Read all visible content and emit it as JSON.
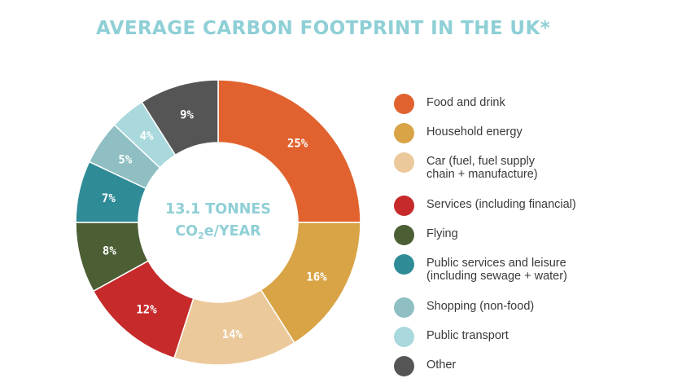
{
  "title": "AVERAGE CARBON FOOTPRINT IN THE UK*",
  "center": {
    "line1": "13.1 TONNES",
    "co2_main": "CO",
    "co2_sub": "2",
    "co2_rest": "e/YEAR"
  },
  "chart_data": {
    "type": "pie",
    "title": "AVERAGE CARBON FOOTPRINT IN THE UK*",
    "categories": [
      "Food and drink",
      "Household energy",
      "Car (fuel, fuel supply chain + manufacture)",
      "Services (including financial)",
      "Flying",
      "Public services and leisure (including sewage + water)",
      "Shopping (non-food)",
      "Public transport",
      "Other"
    ],
    "values": [
      25,
      16,
      14,
      12,
      8,
      7,
      5,
      4,
      9
    ],
    "value_labels": [
      "25%",
      "16%",
      "14%",
      "12%",
      "8%",
      "7%",
      "5%",
      "4%",
      "9%"
    ],
    "colors": [
      "#e1622e",
      "#d9a446",
      "#ecc99b",
      "#c62a2b",
      "#4c5e34",
      "#2f8c97",
      "#8fbfc2",
      "#a9d9dc",
      "#555555"
    ],
    "legend_placement": "right"
  },
  "legend": {
    "items": [
      {
        "lines": [
          "Food and drink"
        ]
      },
      {
        "lines": [
          "Household energy"
        ]
      },
      {
        "lines": [
          "Car (fuel, fuel supply",
          "chain + manufacture)"
        ]
      },
      {
        "lines": [
          "Services (including financial)"
        ]
      },
      {
        "lines": [
          "Flying"
        ]
      },
      {
        "lines": [
          "Public services and leisure",
          "(including sewage + water)"
        ]
      },
      {
        "lines": [
          "Shopping (non-food)"
        ]
      },
      {
        "lines": [
          "Public transport"
        ]
      },
      {
        "lines": [
          "Other"
        ]
      }
    ]
  }
}
